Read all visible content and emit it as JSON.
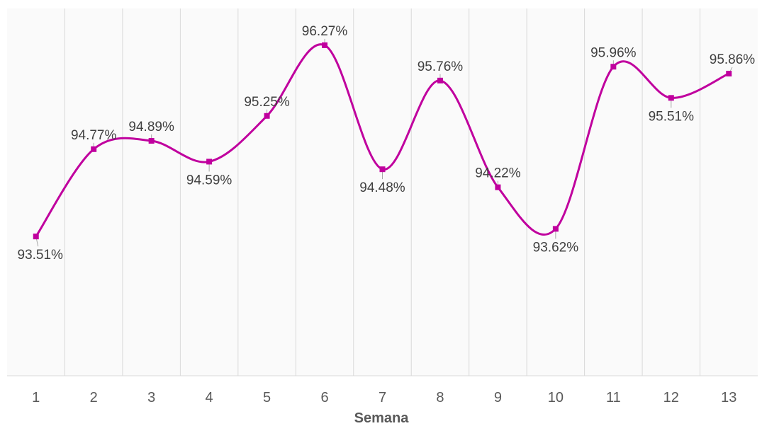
{
  "chart_data": {
    "type": "line",
    "xlabel": "Semana",
    "ylabel": "",
    "categories": [
      "1",
      "2",
      "3",
      "4",
      "5",
      "6",
      "7",
      "8",
      "9",
      "10",
      "11",
      "12",
      "13"
    ],
    "series": [
      {
        "values": [
          93.51,
          94.77,
          94.89,
          94.59,
          95.25,
          96.27,
          94.48,
          95.76,
          94.22,
          93.62,
          95.96,
          95.51,
          95.86
        ],
        "labels": [
          "93.51%",
          "94.77%",
          "94.89%",
          "94.59%",
          "95.25%",
          "96.27%",
          "94.48%",
          "95.76%",
          "94.22%",
          "93.62%",
          "95.96%",
          "95.51%",
          "95.86%"
        ],
        "color": "#c0009e",
        "smooth": true
      }
    ],
    "ylim": [
      91.5,
      96.8
    ],
    "grid": "vertical",
    "legend": "none",
    "colors": {
      "line": "#c0009e",
      "grid": "#d9d9d9",
      "plot_background": "#fafafa",
      "text": "#595959"
    }
  }
}
